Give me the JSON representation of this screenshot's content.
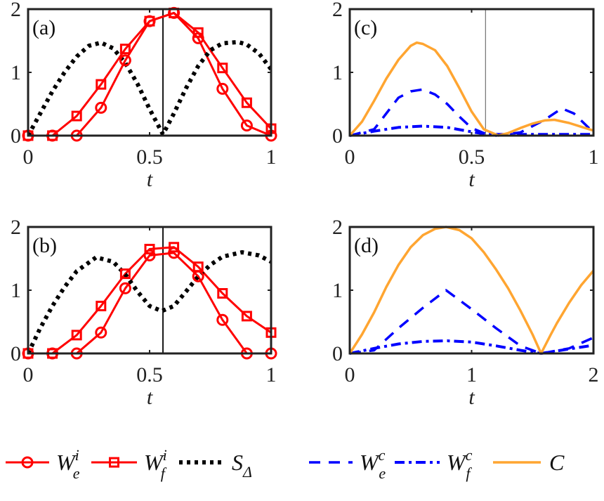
{
  "colors": {
    "red": "#ff0000",
    "black": "#000000",
    "blue": "#0000ff",
    "orange": "#ffa531",
    "frame": "#222222"
  },
  "legend": [
    {
      "key": "We_i",
      "base": "W",
      "sub": "e",
      "sup": "i",
      "style": "red-circle"
    },
    {
      "key": "Wf_i",
      "base": "W",
      "sub": "f",
      "sup": "i",
      "style": "red-square"
    },
    {
      "key": "S_delta",
      "base": "S",
      "sub": "Δ",
      "sup": "",
      "style": "black-dotted"
    },
    {
      "key": "We_c",
      "base": "W",
      "sub": "e",
      "sup": "c",
      "style": "blue-dashed"
    },
    {
      "key": "Wf_c",
      "base": "W",
      "sub": "f",
      "sup": "c",
      "style": "blue-dashdot"
    },
    {
      "key": "C",
      "base": "C",
      "sub": "",
      "sup": "",
      "style": "orange-solid"
    }
  ],
  "chart_data": [
    {
      "panel": "(a)",
      "type": "line",
      "xlabel": "t",
      "xlim": [
        0,
        1
      ],
      "ylim": [
        0,
        2
      ],
      "xticks": [
        "0",
        "0.5",
        "1"
      ],
      "xtick_values": [
        0,
        0.5,
        1
      ],
      "yticks": [
        "0",
        "1",
        "2"
      ],
      "ytick_values": [
        0,
        1,
        2
      ],
      "vline": 0.555,
      "series": [
        {
          "name": "We_i",
          "style": "red-circle",
          "x": [
            0,
            0.1,
            0.2,
            0.3,
            0.4,
            0.5,
            0.6,
            0.7,
            0.8,
            0.9,
            1
          ],
          "y": [
            0,
            0,
            0,
            0.44,
            1.19,
            1.81,
            1.94,
            1.54,
            0.74,
            0.16,
            0
          ]
        },
        {
          "name": "Wf_i",
          "style": "red-square",
          "x": [
            0,
            0.1,
            0.2,
            0.3,
            0.4,
            0.5,
            0.6,
            0.7,
            0.8,
            0.9,
            1
          ],
          "y": [
            0,
            0,
            0.31,
            0.81,
            1.37,
            1.81,
            1.94,
            1.63,
            1.07,
            0.52,
            0.11
          ]
        },
        {
          "name": "S_delta",
          "style": "black-dotted",
          "x": [
            0,
            0.05,
            0.1,
            0.15,
            0.2,
            0.25,
            0.3,
            0.35,
            0.4,
            0.45,
            0.5,
            0.555,
            0.6,
            0.65,
            0.7,
            0.75,
            0.8,
            0.865,
            0.9,
            0.95,
            1
          ],
          "y": [
            0,
            0.35,
            0.7,
            1.0,
            1.25,
            1.42,
            1.47,
            1.38,
            1.15,
            0.82,
            0.42,
            0.02,
            0.35,
            0.75,
            1.1,
            1.35,
            1.46,
            1.48,
            1.44,
            1.3,
            1.05
          ]
        }
      ]
    },
    {
      "panel": "(b)",
      "type": "line",
      "xlabel": "t",
      "xlim": [
        0,
        1
      ],
      "ylim": [
        0,
        2
      ],
      "xticks": [
        "0",
        "0.5",
        "1"
      ],
      "xtick_values": [
        0,
        0.5,
        1
      ],
      "yticks": [
        "0",
        "1",
        "2"
      ],
      "ytick_values": [
        0,
        1,
        2
      ],
      "vline": 0.555,
      "series": [
        {
          "name": "We_i",
          "style": "red-circle",
          "x": [
            0,
            0.1,
            0.2,
            0.3,
            0.4,
            0.5,
            0.6,
            0.7,
            0.8,
            0.9,
            1
          ],
          "y": [
            0,
            0,
            0,
            0.33,
            1.03,
            1.55,
            1.59,
            1.22,
            0.53,
            0,
            0
          ]
        },
        {
          "name": "Wf_i",
          "style": "red-square",
          "x": [
            0,
            0.1,
            0.2,
            0.3,
            0.4,
            0.5,
            0.6,
            0.7,
            0.8,
            0.9,
            1
          ],
          "y": [
            0,
            0,
            0.29,
            0.75,
            1.26,
            1.65,
            1.68,
            1.37,
            0.95,
            0.59,
            0.33
          ]
        },
        {
          "name": "S_delta",
          "style": "black-dotted",
          "x": [
            0,
            0.05,
            0.1,
            0.15,
            0.2,
            0.28,
            0.35,
            0.4,
            0.45,
            0.5,
            0.55,
            0.6,
            0.65,
            0.7,
            0.75,
            0.8,
            0.88,
            0.95,
            1
          ],
          "y": [
            0,
            0.4,
            0.75,
            1.05,
            1.3,
            1.52,
            1.45,
            1.25,
            0.98,
            0.75,
            0.67,
            0.75,
            0.98,
            1.22,
            1.4,
            1.53,
            1.6,
            1.55,
            1.45
          ]
        }
      ]
    },
    {
      "panel": "(c)",
      "type": "line",
      "xlabel": "t",
      "xlim": [
        0,
        1
      ],
      "ylim": [
        0,
        2
      ],
      "xticks": [
        "0",
        "0.5",
        "1"
      ],
      "xtick_values": [
        0,
        0.5,
        1
      ],
      "yticks": [
        "0",
        "1",
        "2"
      ],
      "ytick_values": [
        0,
        1,
        2
      ],
      "vline": 0.557,
      "series": [
        {
          "name": "We_c",
          "style": "blue-dashed",
          "x": [
            0,
            0.1,
            0.15,
            0.2,
            0.25,
            0.3,
            0.35,
            0.4,
            0.45,
            0.5,
            0.55,
            0.6,
            0.7,
            0.8,
            0.87,
            0.92,
            1
          ],
          "y": [
            0,
            0.1,
            0.35,
            0.6,
            0.7,
            0.73,
            0.65,
            0.5,
            0.3,
            0.12,
            0.04,
            0,
            0.05,
            0.25,
            0.43,
            0.35,
            0.05
          ]
        },
        {
          "name": "Wf_c",
          "style": "blue-dashdot",
          "x": [
            0,
            0.1,
            0.2,
            0.3,
            0.4,
            0.5,
            0.55,
            0.6,
            0.8,
            1
          ],
          "y": [
            0,
            0.07,
            0.13,
            0.15,
            0.13,
            0.06,
            0.03,
            0.02,
            0.02,
            0.02
          ]
        },
        {
          "name": "C",
          "style": "orange-solid",
          "x": [
            0,
            0.05,
            0.1,
            0.15,
            0.2,
            0.25,
            0.275,
            0.3,
            0.35,
            0.4,
            0.45,
            0.5,
            0.55,
            0.61,
            0.65,
            0.7,
            0.75,
            0.8,
            0.84,
            0.9,
            0.95,
            1
          ],
          "y": [
            0,
            0.22,
            0.55,
            0.9,
            1.2,
            1.42,
            1.47,
            1.45,
            1.35,
            1.1,
            0.75,
            0.38,
            0.1,
            0,
            0.04,
            0.12,
            0.19,
            0.24,
            0.25,
            0.2,
            0.14,
            0.08
          ]
        }
      ]
    },
    {
      "panel": "(d)",
      "type": "line",
      "xlabel": "t",
      "xlim": [
        0,
        2
      ],
      "ylim": [
        0,
        2
      ],
      "xticks": [
        "0",
        "1",
        "2"
      ],
      "xtick_values": [
        0,
        1,
        2
      ],
      "yticks": [
        "0",
        "1",
        "2"
      ],
      "ytick_values": [
        0,
        1,
        2
      ],
      "vline": null,
      "series": [
        {
          "name": "We_c",
          "style": "blue-dashed",
          "x": [
            0,
            0.2,
            0.4,
            0.6,
            0.79,
            1.0,
            1.2,
            1.4,
            1.57,
            1.8,
            2
          ],
          "y": [
            0,
            0.05,
            0.4,
            0.72,
            1.0,
            0.7,
            0.4,
            0.12,
            0,
            0.08,
            0.25
          ]
        },
        {
          "name": "Wf_c",
          "style": "blue-dashdot",
          "x": [
            0,
            0.2,
            0.4,
            0.6,
            0.8,
            1.0,
            1.2,
            1.4,
            1.57,
            1.8,
            2
          ],
          "y": [
            0,
            0.08,
            0.15,
            0.19,
            0.2,
            0.18,
            0.12,
            0.05,
            0,
            0.07,
            0.13
          ]
        },
        {
          "name": "C",
          "style": "orange-solid",
          "x": [
            0,
            0.1,
            0.2,
            0.3,
            0.4,
            0.5,
            0.6,
            0.7,
            0.79,
            0.9,
            1.0,
            1.1,
            1.2,
            1.3,
            1.4,
            1.5,
            1.57,
            1.65,
            1.7,
            1.8,
            1.9,
            2
          ],
          "y": [
            0,
            0.3,
            0.65,
            1.05,
            1.4,
            1.68,
            1.87,
            1.97,
            2.0,
            1.95,
            1.82,
            1.6,
            1.33,
            1.03,
            0.68,
            0.3,
            0,
            0.3,
            0.48,
            0.8,
            1.08,
            1.31
          ]
        }
      ]
    }
  ]
}
